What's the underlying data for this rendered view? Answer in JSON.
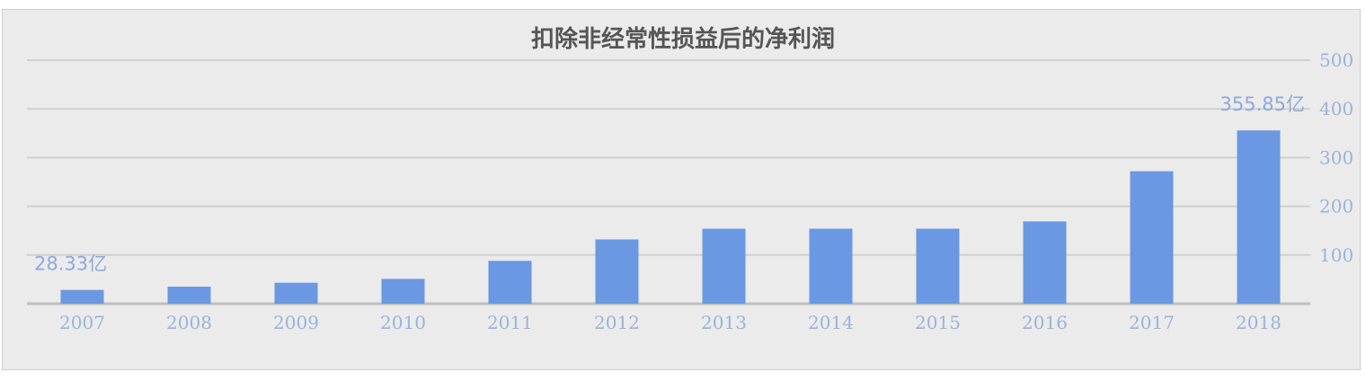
{
  "chart_data": {
    "type": "bar",
    "title": "扣除非经常性损益后的净利润",
    "categories": [
      "2007",
      "2008",
      "2009",
      "2010",
      "2011",
      "2012",
      "2013",
      "2014",
      "2015",
      "2016",
      "2017",
      "2018"
    ],
    "values": [
      28.33,
      35,
      43,
      51,
      88,
      132,
      154,
      154,
      154,
      169,
      272,
      355.85
    ],
    "data_labels": [
      {
        "category": "2007",
        "text": "28.33亿"
      },
      {
        "category": "2018",
        "text": "355.85亿"
      }
    ],
    "ylim": [
      0,
      500
    ],
    "yticks": [
      100,
      200,
      300,
      400,
      500
    ],
    "y_axis_side": "right",
    "grid": true,
    "legend": "none",
    "colors": {
      "bar": "#6a98e2",
      "grid": "#cfcfcf",
      "axis": "#bfbfbf",
      "tick_text": "#9db2d9",
      "label_text": "#8fa9d8",
      "background": "#ebebeb"
    }
  }
}
